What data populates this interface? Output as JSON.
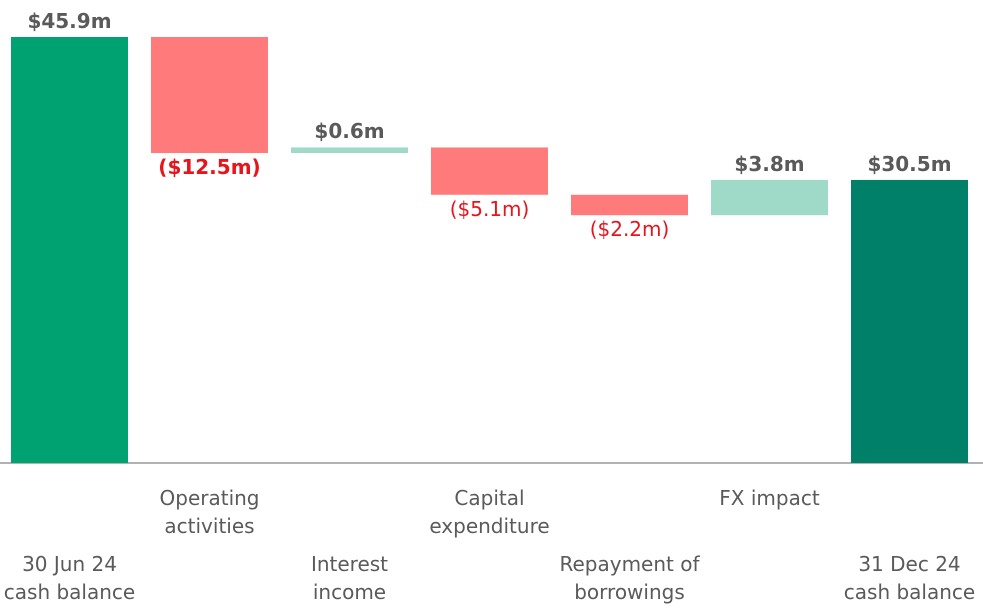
{
  "chart_data": {
    "type": "waterfall",
    "categories": [
      "30 Jun 24\ncash balance",
      "Operating\nactivities",
      "Interest\nincome",
      "Capital\nexpenditure",
      "Repayment of\nborrowings",
      "FX impact",
      "31 Dec 24\ncash balance"
    ],
    "values": [
      45.9,
      -12.5,
      0.6,
      -5.1,
      -2.2,
      3.8,
      30.5
    ],
    "value_labels": [
      "$45.9m",
      "($12.5m)",
      "$0.6m",
      "($5.1m)",
      "($2.2m)",
      "$3.8m",
      "$30.5m"
    ],
    "measures": [
      "total",
      "relative",
      "relative",
      "relative",
      "relative",
      "relative",
      "total"
    ],
    "colors": {
      "total_start": "#00a272",
      "total_end": "#008068",
      "increase": "#9edac7",
      "decrease": "#ff7b7b"
    }
  }
}
